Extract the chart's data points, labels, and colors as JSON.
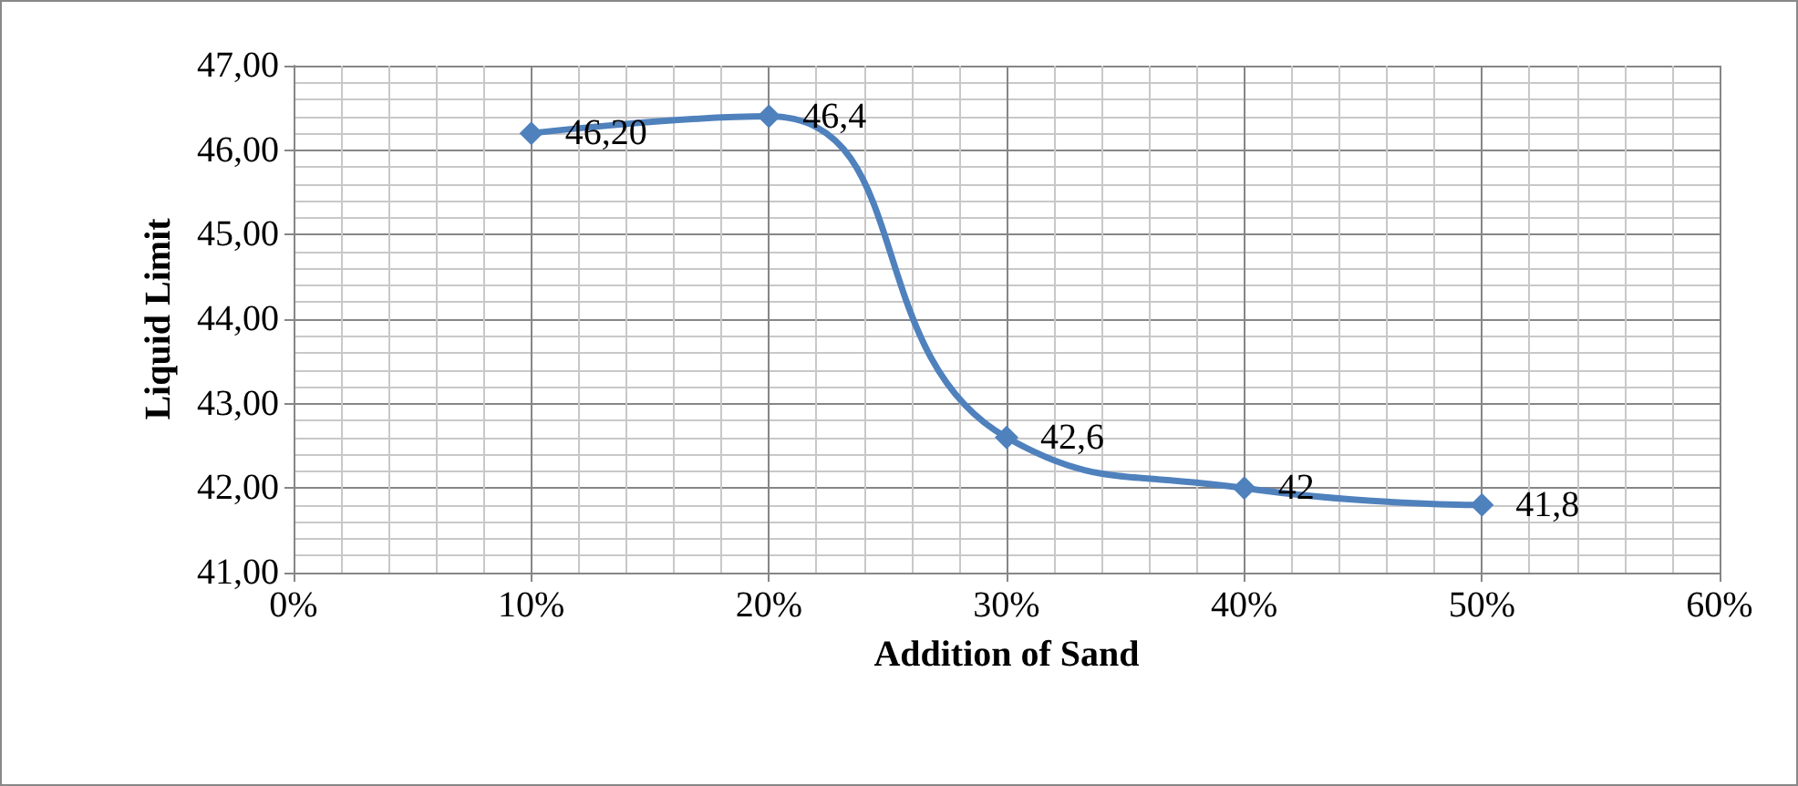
{
  "chart_data": {
    "type": "line",
    "xlabel": "Addition of Sand",
    "ylabel": "Liquid Limit",
    "x": [
      10,
      20,
      30,
      40,
      50
    ],
    "series": [
      {
        "color": "#4f81bd",
        "values": [
          46.2,
          46.4,
          42.6,
          42,
          41.8
        ],
        "value_labels": [
          "46,20",
          "46,4",
          "42,6",
          "42",
          "41,8"
        ]
      }
    ],
    "xlim": [
      0,
      60
    ],
    "xticks": [
      {
        "value": 0,
        "label": "0%"
      },
      {
        "value": 10,
        "label": "10%"
      },
      {
        "value": 20,
        "label": "20%"
      },
      {
        "value": 30,
        "label": "30%"
      },
      {
        "value": 40,
        "label": "40%"
      },
      {
        "value": 50,
        "label": "50%"
      },
      {
        "value": 60,
        "label": "60%"
      }
    ],
    "ylim": [
      41,
      47
    ],
    "yticks": [
      {
        "value": 41,
        "label": "41,00"
      },
      {
        "value": 42,
        "label": "42,00"
      },
      {
        "value": 43,
        "label": "43,00"
      },
      {
        "value": 44,
        "label": "44,00"
      },
      {
        "value": 45,
        "label": "45,00"
      },
      {
        "value": 46,
        "label": "46,00"
      },
      {
        "value": 47,
        "label": "47,00"
      }
    ],
    "grid": true,
    "marker": "diamond",
    "line_style": "solid"
  }
}
